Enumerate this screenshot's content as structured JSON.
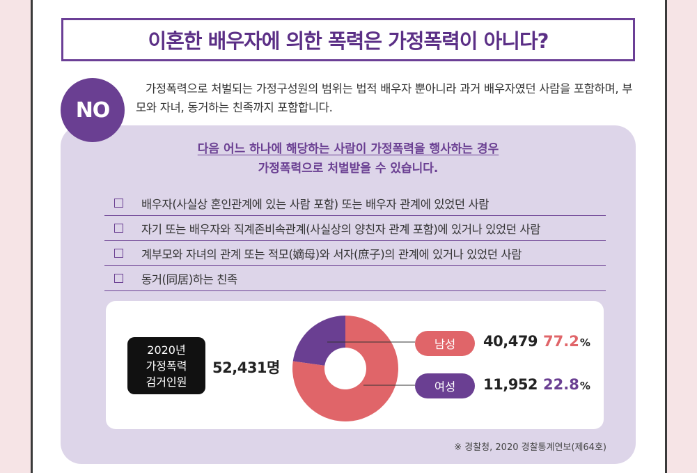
{
  "title": "이혼한 배우자에 의한 폭력은 가정폭력이 아니다?",
  "answer": "NO",
  "intro": "가정폭력으로 처벌되는 가정구성원의 범위는 법적 배우자 뿐아니라 과거 배우자였던 사람을 포함하며, 부모와 자녀, 동거하는 친족까지 포함합니다.",
  "lead": {
    "line1": "다음 어느 하나에 해당하는 사람이 가정폭력을 행사하는 경우",
    "line2": "가정폭력으로 처벌받을 수 있습니다."
  },
  "checklist": [
    "배우자(사실상 혼인관계에 있는 사람 포함) 또는 배우자 관계에 있었던 사람",
    "자기 또는 배우자와 직계존비속관계(사실상의 양친자 관계 포함)에 있거나 있었던 사람",
    "계부모와 자녀의 관계 또는 적모(嫡母)와 서자(庶子)의 관계에 있거나 있었던 사람",
    "동거(同居)하는 친족"
  ],
  "stat": {
    "box_line1": "2020년",
    "box_line2": "가정폭력",
    "box_line3": "검거인원",
    "total": "52,431명"
  },
  "chart_data": {
    "type": "pie",
    "title": "",
    "total": 52431,
    "series": [
      {
        "name": "남성",
        "count": 40479,
        "count_label": "40,479",
        "value": 77.2,
        "value_label": "77.2",
        "color": "#e06569"
      },
      {
        "name": "여성",
        "count": 11952,
        "count_label": "11,952",
        "value": 22.8,
        "value_label": "22.8",
        "color": "#6a3f92"
      }
    ],
    "unit": "%",
    "style": "donut"
  },
  "source": "※ 경찰청, 2020 경찰통계연보(제64호)",
  "colors": {
    "primary": "#6a3f92",
    "accent": "#e06569",
    "background": "#f6e4e6",
    "lilac": "#ddd5e9"
  }
}
